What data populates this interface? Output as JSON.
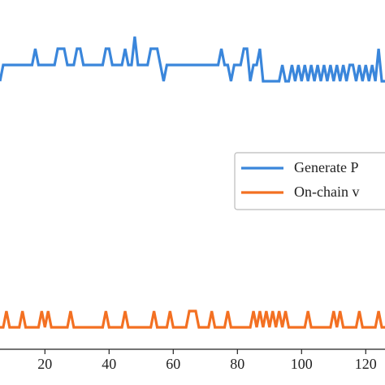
{
  "chart_data": {
    "type": "line",
    "x": [
      6,
      7,
      8,
      9,
      10,
      11,
      12,
      13,
      14,
      15,
      16,
      17,
      18,
      19,
      20,
      21,
      22,
      23,
      24,
      25,
      26,
      27,
      28,
      29,
      30,
      31,
      32,
      33,
      34,
      35,
      36,
      37,
      38,
      39,
      40,
      41,
      42,
      43,
      44,
      45,
      46,
      47,
      48,
      49,
      50,
      51,
      52,
      53,
      54,
      55,
      56,
      57,
      58,
      59,
      60,
      61,
      62,
      63,
      64,
      65,
      66,
      67,
      68,
      69,
      70,
      71,
      72,
      73,
      74,
      75,
      76,
      77,
      78,
      79,
      80,
      81,
      82,
      83,
      84,
      85,
      86,
      87,
      88,
      89,
      90,
      91,
      92,
      93,
      94,
      95,
      96,
      97,
      98,
      99,
      100,
      101,
      102,
      103,
      104,
      105,
      106,
      107,
      108,
      109,
      110,
      111,
      112,
      113,
      114,
      115,
      116,
      117,
      118,
      119,
      120,
      121,
      122,
      123,
      124,
      125,
      126
    ],
    "series": [
      {
        "name": "Generate P",
        "color": "#3a86db",
        "values": [
          33,
          35,
          35,
          35,
          35,
          35,
          35,
          35,
          35,
          35,
          35,
          37,
          35,
          35,
          35,
          35,
          35,
          35,
          37,
          37,
          37,
          35,
          35,
          35,
          37,
          37,
          35,
          35,
          35,
          35,
          35,
          35,
          35,
          37,
          37,
          35,
          35,
          35,
          35,
          37,
          35,
          35,
          38.5,
          35,
          35,
          35,
          35,
          37,
          37,
          37,
          35,
          33,
          35,
          35,
          35,
          35,
          35,
          35,
          35,
          35,
          35,
          35,
          35,
          35,
          35,
          35,
          35,
          35,
          35,
          37,
          35,
          35,
          33,
          35,
          35,
          35,
          37,
          37,
          33,
          35,
          35,
          37,
          33,
          33,
          33,
          33,
          33,
          33,
          35,
          33,
          33,
          35,
          33,
          35,
          33,
          35,
          33,
          35,
          33,
          35,
          33,
          35,
          33,
          35,
          33,
          35,
          33,
          35,
          33,
          35,
          35,
          33,
          35,
          33,
          35,
          33,
          35,
          33,
          37,
          33,
          33
        ]
      },
      {
        "name": "On-chain v",
        "color": "#f37022",
        "values": [
          2.7,
          2.7,
          4.7,
          2.7,
          2.7,
          2.7,
          2.7,
          4.7,
          2.7,
          2.7,
          2.7,
          2.7,
          2.7,
          4.7,
          2.7,
          4.7,
          2.7,
          2.7,
          2.7,
          2.7,
          2.7,
          2.7,
          4.7,
          2.7,
          2.7,
          2.7,
          2.7,
          2.7,
          2.7,
          2.7,
          2.7,
          2.7,
          2.7,
          4.7,
          2.7,
          2.7,
          2.7,
          2.7,
          2.7,
          4.7,
          2.7,
          2.7,
          2.7,
          2.7,
          2.7,
          2.7,
          2.7,
          2.7,
          4.7,
          2.7,
          2.7,
          2.7,
          2.7,
          4.7,
          2.7,
          2.7,
          2.7,
          2.7,
          2.7,
          4.7,
          4.7,
          4.7,
          2.7,
          2.7,
          2.7,
          2.7,
          4.7,
          2.7,
          2.7,
          2.7,
          2.7,
          4.7,
          2.7,
          2.7,
          2.7,
          2.7,
          2.7,
          2.7,
          2.7,
          4.7,
          2.7,
          4.7,
          2.7,
          4.7,
          2.7,
          4.7,
          2.7,
          4.7,
          2.7,
          4.7,
          2.7,
          2.7,
          2.7,
          2.7,
          2.7,
          2.7,
          4.7,
          2.7,
          2.7,
          2.7,
          2.7,
          2.7,
          2.7,
          2.7,
          4.7,
          2.7,
          4.7,
          2.7,
          2.7,
          2.7,
          2.7,
          2.7,
          4.7,
          2.7,
          2.7,
          2.7,
          2.7,
          2.7,
          4.7,
          2.7,
          2.7
        ]
      }
    ],
    "xlim": [
      6,
      126
    ],
    "xticks": [
      20,
      40,
      60,
      80,
      100,
      120
    ],
    "ylim": [
      0,
      43
    ]
  }
}
